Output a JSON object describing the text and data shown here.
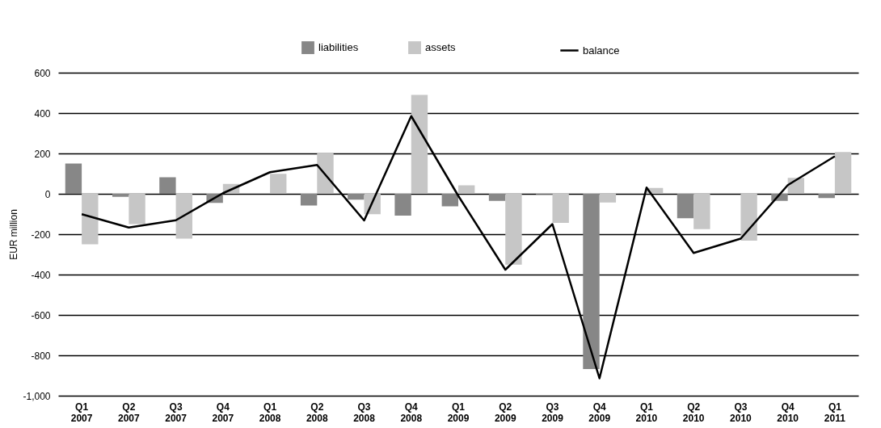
{
  "chart_data": {
    "type": "bar",
    "ylabel": "EUR million",
    "categories": [
      "Q1 2007",
      "Q2 2007",
      "Q3 2007",
      "Q4 2007",
      "Q1 2008",
      "Q2 2008",
      "Q3 2008",
      "Q4 2008",
      "Q1 2009",
      "Q2 2009",
      "Q3 2009",
      "Q4 2009",
      "Q1 2010",
      "Q2 2010",
      "Q3 2010",
      "Q4 2010",
      "Q1 2011"
    ],
    "series": [
      {
        "name": "liabilities",
        "color": "#878787",
        "values": [
          150,
          -15,
          82,
          -45,
          0,
          -58,
          -29,
          -108,
          -62,
          -35,
          -3,
          -868,
          0,
          -121,
          0,
          -35,
          -21
        ]
      },
      {
        "name": "assets",
        "color": "#c6c6c6",
        "values": [
          -250,
          -150,
          -222,
          49,
          99,
          200,
          -101,
          490,
          42,
          -351,
          -144,
          -43,
          29,
          -175,
          -232,
          79,
          207
        ]
      },
      {
        "name": "balance",
        "type": "line",
        "color": "#000000",
        "values": [
          -101,
          -167,
          -131,
          3,
          107,
          143,
          -132,
          385,
          -10,
          -376,
          -150,
          -914,
          31,
          -293,
          -222,
          43,
          186
        ]
      }
    ],
    "ylim": [
      -1000,
      600
    ],
    "yticks": [
      {
        "value": -1000,
        "label": "-1,000"
      },
      {
        "value": -800,
        "label": "-800"
      },
      {
        "value": -600,
        "label": "-600"
      },
      {
        "value": -400,
        "label": "-400"
      },
      {
        "value": -200,
        "label": "-200"
      },
      0,
      200,
      400,
      600
    ],
    "grid": "y",
    "legend": "top"
  }
}
